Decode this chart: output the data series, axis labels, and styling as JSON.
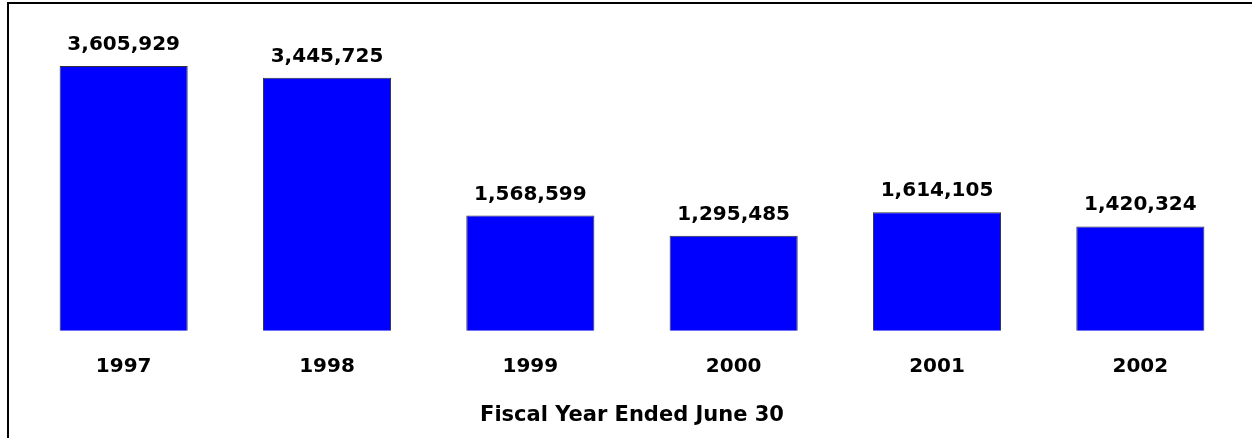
{
  "chart_data": {
    "type": "bar",
    "xlabel": "Fiscal Year Ended June 30",
    "categories": [
      "1997",
      "1998",
      "1999",
      "2000",
      "2001",
      "2002"
    ],
    "values": [
      3605929,
      3445725,
      1568599,
      1295485,
      1614105,
      1420324
    ],
    "value_labels": [
      "3,605,929",
      "3,445,725",
      "1,568,599",
      "1,295,485",
      "1,614,105",
      "1,420,324"
    ],
    "color": "#0000ff",
    "tick_labels": "x"
  }
}
